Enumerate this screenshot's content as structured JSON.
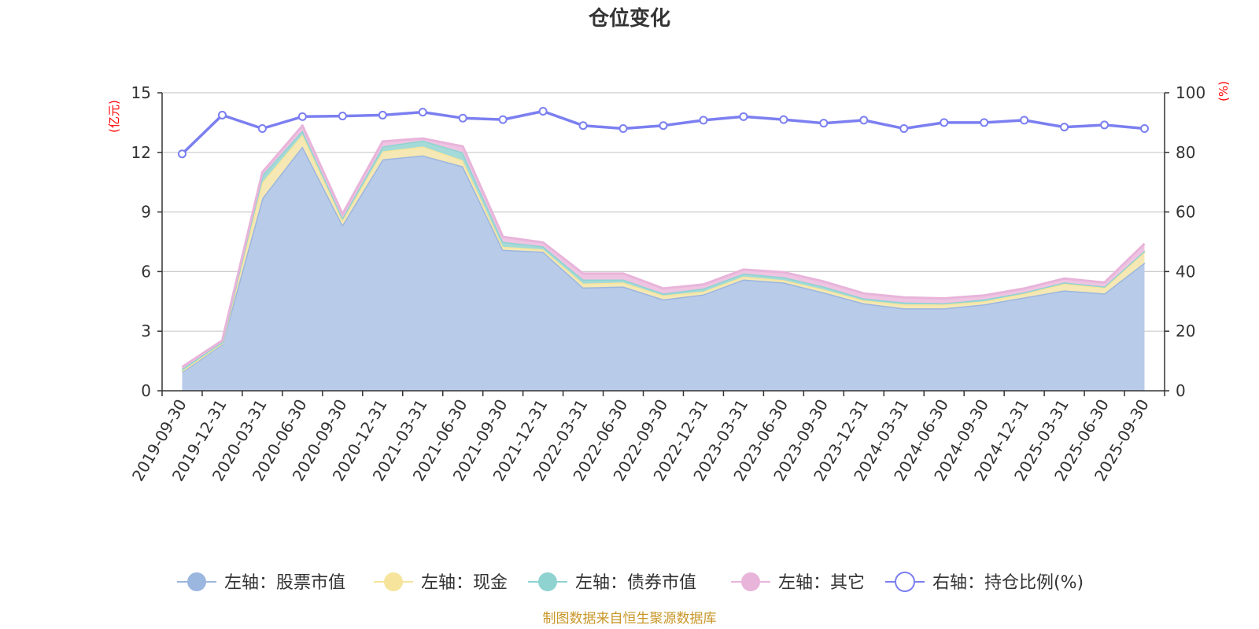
{
  "title": "仓位变化",
  "source": "制图数据来自恒生聚源数据库",
  "chart_data": {
    "type": "area",
    "x": [
      "2019-09-30",
      "2019-12-31",
      "2020-03-31",
      "2020-06-30",
      "2020-09-30",
      "2020-12-31",
      "2021-03-31",
      "2021-06-30",
      "2021-09-30",
      "2021-12-31",
      "2022-03-31",
      "2022-06-30",
      "2022-09-30",
      "2022-12-31",
      "2023-03-31",
      "2023-06-30",
      "2023-09-30",
      "2023-12-31",
      "2024-03-31",
      "2024-06-30",
      "2024-09-30",
      "2024-12-31",
      "2025-03-31",
      "2025-06-30",
      "2025-09-30"
    ],
    "left_axis": {
      "unit": "(亿元)",
      "ylim": [
        0,
        15
      ],
      "ticks": [
        "0",
        "3",
        "6",
        "9",
        "12",
        "15"
      ]
    },
    "right_axis": {
      "unit": "(%)",
      "ylim": [
        0,
        100
      ],
      "ticks": [
        "0",
        "20",
        "40",
        "60",
        "80",
        "100"
      ]
    },
    "grid": true,
    "legend_position": "bottom",
    "stacked_series": [
      {
        "name": "左轴：股票市值",
        "color": "#9bb6df",
        "fill": "#b8cbe9",
        "values": [
          0.95,
          2.35,
          9.7,
          12.3,
          8.35,
          11.65,
          11.85,
          11.3,
          7.1,
          7.0,
          5.2,
          5.25,
          4.6,
          4.85,
          5.6,
          5.45,
          4.95,
          4.4,
          4.15,
          4.15,
          4.35,
          4.7,
          5.05,
          4.9,
          6.45
        ]
      },
      {
        "name": "左轴：现金",
        "color": "#f7e49c",
        "fill": "#f5e8b4",
        "values": [
          0.05,
          0.05,
          0.8,
          0.6,
          0.25,
          0.4,
          0.45,
          0.3,
          0.15,
          0.12,
          0.2,
          0.2,
          0.2,
          0.15,
          0.15,
          0.12,
          0.15,
          0.15,
          0.2,
          0.2,
          0.15,
          0.2,
          0.35,
          0.3,
          0.55
        ]
      },
      {
        "name": "左轴：债券市值",
        "color": "#8fd3d1",
        "fill": "#a4dad8",
        "values": [
          0.1,
          0.05,
          0.35,
          0.2,
          0.1,
          0.25,
          0.3,
          0.4,
          0.25,
          0.15,
          0.2,
          0.15,
          0.1,
          0.15,
          0.15,
          0.15,
          0.15,
          0.1,
          0.1,
          0.05,
          0.1,
          0.05,
          0.05,
          0.05,
          0.05
        ]
      },
      {
        "name": "左轴：其它",
        "color": "#e8b4da",
        "fill": "#efc4e2",
        "values": [
          0.1,
          0.08,
          0.15,
          0.25,
          0.2,
          0.25,
          0.1,
          0.3,
          0.25,
          0.2,
          0.3,
          0.3,
          0.25,
          0.2,
          0.2,
          0.25,
          0.25,
          0.25,
          0.25,
          0.25,
          0.2,
          0.2,
          0.2,
          0.2,
          0.35
        ]
      }
    ],
    "line_series": {
      "name": "右轴：持仓比例(%)",
      "color": "#7b7ff0",
      "values": [
        79.5,
        92.5,
        88.0,
        92.0,
        92.2,
        92.5,
        93.5,
        91.5,
        91.0,
        93.8,
        89.0,
        88.0,
        89.0,
        90.8,
        92.0,
        91.0,
        89.8,
        90.8,
        88.0,
        90.0,
        90.0,
        90.8,
        88.5,
        89.2,
        88.0
      ]
    }
  }
}
